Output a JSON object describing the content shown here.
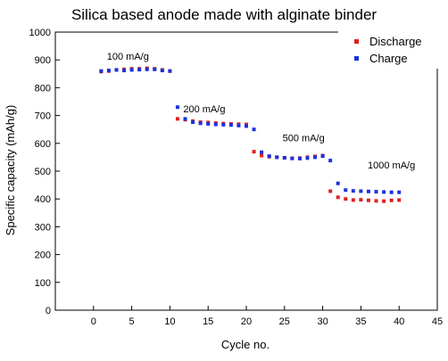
{
  "chart_data": {
    "type": "scatter",
    "title": "Silica based anode made with alginate binder",
    "xlabel": "Cycle no.",
    "ylabel": "Specific capacity (mAh/g)",
    "xlim": [
      -5,
      45
    ],
    "ylim": [
      0,
      1000
    ],
    "xticks": [
      0,
      5,
      10,
      15,
      20,
      25,
      30,
      35,
      40,
      45
    ],
    "yticks": [
      0,
      100,
      200,
      300,
      400,
      500,
      600,
      700,
      800,
      900,
      1000
    ],
    "grid": false,
    "legend_position": "top-right",
    "annotations": [
      {
        "text": "100 mA/g",
        "x": 4.5,
        "y": 900
      },
      {
        "text": "200 mA/g",
        "x": 14.5,
        "y": 711
      },
      {
        "text": "500 mA/g",
        "x": 27.5,
        "y": 608
      },
      {
        "text": "1000 mA/g",
        "x": 39,
        "y": 510
      }
    ],
    "series": [
      {
        "name": "Discharge",
        "color": "#e02020",
        "marker": "square",
        "x": [
          1,
          2,
          3,
          4,
          5,
          6,
          7,
          8,
          9,
          10,
          11,
          12,
          13,
          14,
          15,
          16,
          17,
          18,
          19,
          20,
          21,
          22,
          23,
          24,
          25,
          26,
          27,
          28,
          29,
          30,
          31,
          32,
          33,
          34,
          35,
          36,
          37,
          38,
          39,
          40
        ],
        "y": [
          858,
          860,
          864,
          866,
          868,
          868,
          870,
          868,
          864,
          860,
          688,
          685,
          680,
          676,
          675,
          673,
          671,
          670,
          669,
          668,
          570,
          556,
          552,
          550,
          548,
          546,
          547,
          550,
          553,
          556,
          428,
          406,
          400,
          396,
          397,
          395,
          393,
          392,
          395,
          396
        ]
      },
      {
        "name": "Charge",
        "color": "#1a33dd",
        "marker": "square",
        "x": [
          1,
          2,
          3,
          4,
          5,
          6,
          7,
          8,
          9,
          10,
          11,
          12,
          13,
          14,
          15,
          16,
          17,
          18,
          19,
          20,
          21,
          22,
          23,
          24,
          25,
          26,
          27,
          28,
          29,
          30,
          31,
          32,
          33,
          34,
          35,
          36,
          37,
          38,
          39,
          40
        ],
        "y": [
          860,
          862,
          864,
          862,
          864,
          865,
          866,
          866,
          862,
          860,
          730,
          688,
          676,
          672,
          670,
          668,
          667,
          666,
          664,
          662,
          650,
          568,
          554,
          550,
          548,
          546,
          545,
          547,
          550,
          554,
          538,
          456,
          432,
          429,
          428,
          427,
          426,
          425,
          424,
          424
        ]
      }
    ]
  }
}
